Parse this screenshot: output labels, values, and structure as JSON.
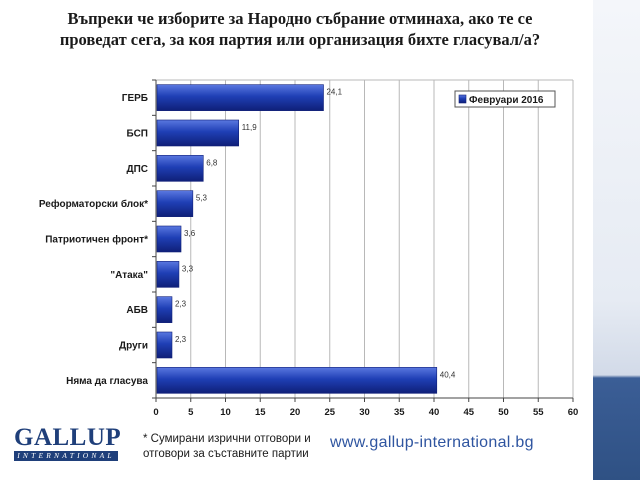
{
  "title": {
    "line1": "Въпреки че изборите за Народно събрание отминаха, ако те се",
    "line2": "проведат сега, за коя партия или организация бихте гласувал/а?"
  },
  "colors": {
    "bar": "#1f3fb5",
    "bar_dark": "#0f1f78",
    "bar_light": "#5a78e0",
    "accent": "#2f5184"
  },
  "chart_data": {
    "type": "bar",
    "orientation": "horizontal",
    "categories": [
      "ГЕРБ",
      "БСП",
      "ДПС",
      "Реформаторски блок*",
      "Патриотичен фронт*",
      "\"Атака\"",
      "АБВ",
      "Други",
      "Няма да гласува"
    ],
    "series": [
      {
        "name": "Февруари 2016",
        "values": [
          24.1,
          11.9,
          6.8,
          5.3,
          3.6,
          3.3,
          2.3,
          2.3,
          40.4
        ]
      }
    ],
    "value_labels": [
      "24,1",
      "11,9",
      "6,8",
      "5,3",
      "3,6",
      "3,3",
      "2,3",
      "2,3",
      "40,4"
    ],
    "xlim": [
      0,
      60
    ],
    "xticks": [
      0,
      5,
      10,
      15,
      20,
      25,
      30,
      35,
      40,
      45,
      50,
      55,
      60
    ],
    "grid": true,
    "legend_position": "top-right"
  },
  "logo": {
    "main": "GALLUP",
    "sub": "INTERNATIONAL"
  },
  "footnote": {
    "line1": "* Сумирани изрични отговори и",
    "line2": "отговори за съставните партии"
  },
  "website": "www.gallup-international.bg"
}
